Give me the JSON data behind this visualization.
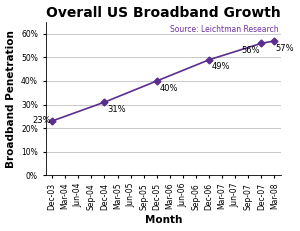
{
  "title": "Overall US Broadband Growth",
  "xlabel": "Month",
  "ylabel": "Broadband Penetration",
  "source_text": "Source: Leichtman Research",
  "x_labels": [
    "Dec-03",
    "Mar-04",
    "Jun-04",
    "Sep-04",
    "Dec-04",
    "Mar-05",
    "Jun-05",
    "Sep-05",
    "Dec-05",
    "Mar-06",
    "Jun-06",
    "Sep-06",
    "Dec-06",
    "Mar-07",
    "Jun-07",
    "Sep-07",
    "Dec-07",
    "Mar-08"
  ],
  "data_points": [
    {
      "index": 0,
      "value": 0.23,
      "label": "23%",
      "label_ha": "right",
      "label_xoff": -0.1,
      "label_yoff": 0.0
    },
    {
      "index": 4,
      "value": 0.31,
      "label": "31%",
      "label_ha": "left",
      "label_xoff": 0.2,
      "label_yoff": -0.03
    },
    {
      "index": 8,
      "value": 0.4,
      "label": "40%",
      "label_ha": "left",
      "label_xoff": 0.2,
      "label_yoff": -0.03
    },
    {
      "index": 12,
      "value": 0.49,
      "label": "49%",
      "label_ha": "left",
      "label_xoff": 0.2,
      "label_yoff": -0.03
    },
    {
      "index": 16,
      "value": 0.56,
      "label": "56%",
      "label_ha": "right",
      "label_xoff": -0.1,
      "label_yoff": -0.03
    },
    {
      "index": 17,
      "value": 0.57,
      "label": "57%",
      "label_ha": "left",
      "label_xoff": 0.1,
      "label_yoff": -0.03
    }
  ],
  "line_color": "#5b2d8e",
  "marker": "D",
  "marker_size": 3.5,
  "ylim": [
    0.0,
    0.65
  ],
  "yticks": [
    0.0,
    0.1,
    0.2,
    0.3,
    0.4,
    0.5,
    0.6
  ],
  "background_color": "#ffffff",
  "grid_color": "#c0c0c0",
  "title_fontsize": 10,
  "label_fontsize": 7.5,
  "tick_fontsize": 5.5,
  "annotation_fontsize": 6,
  "source_fontsize": 5.5,
  "source_color": "#7030a0"
}
